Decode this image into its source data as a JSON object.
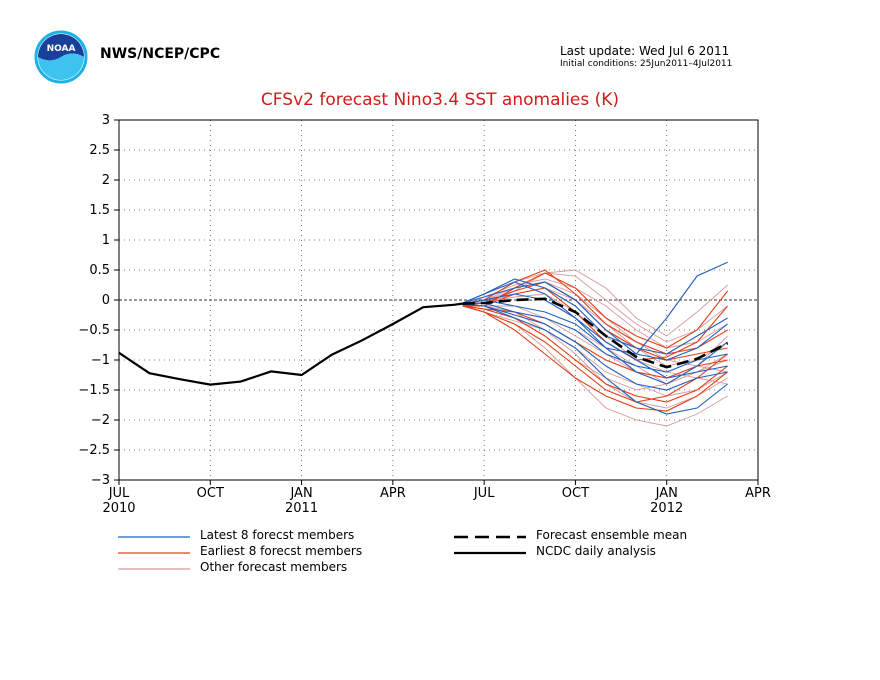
{
  "header": {
    "org": "NWS/NCEP/CPC",
    "last_update": "Last update: Wed Jul  6 2011",
    "initial_conditions": "Initial conditions: 25Jun2011–4Jul2011"
  },
  "logo": {
    "text": "NOAA"
  },
  "colors": {
    "title": "#d11a1a",
    "latest": "#1f5fbf",
    "earliest": "#e0401a",
    "other": "#d89a9a",
    "analysis": "#000000",
    "mean": "#000000"
  },
  "chart_data": {
    "type": "line",
    "title": "CFSv2 forecast Nino3.4 SST anomalies (K)",
    "xlabel": "",
    "ylabel": "",
    "x_domain_months": [
      0,
      21
    ],
    "ylim": [
      -3,
      3
    ],
    "yticks": [
      "3",
      "2.5",
      "2",
      "1.5",
      "1",
      "0.5",
      "0",
      "−0.5",
      "−1",
      "−1.5",
      "−2",
      "−2.5",
      "−3"
    ],
    "xticks": [
      {
        "label": "JUL",
        "sub": "2010"
      },
      {
        "label": "OCT",
        "sub": ""
      },
      {
        "label": "JAN",
        "sub": "2011"
      },
      {
        "label": "APR",
        "sub": ""
      },
      {
        "label": "JUL",
        "sub": ""
      },
      {
        "label": "OCT",
        "sub": ""
      },
      {
        "label": "JAN",
        "sub": "2012"
      },
      {
        "label": "APR",
        "sub": ""
      }
    ],
    "grid": true,
    "legend": [
      {
        "label": "Latest 8 forecst members",
        "style": "latest"
      },
      {
        "label": "Earliest 8 forecst members",
        "style": "earliest"
      },
      {
        "label": "Other forecast members",
        "style": "other"
      },
      {
        "label": "Forecast ensemble mean",
        "style": "mean"
      },
      {
        "label": "NCDC daily analysis",
        "style": "analysis"
      }
    ],
    "analysis": {
      "x": [
        0,
        1,
        2,
        3,
        4,
        5,
        6,
        7,
        8,
        9,
        10,
        11,
        11.3
      ],
      "y": [
        -0.88,
        -1.22,
        -1.32,
        -1.41,
        -1.36,
        -1.19,
        -1.25,
        -0.91,
        -0.67,
        -0.4,
        -0.12,
        -0.08,
        -0.06
      ]
    },
    "mean": {
      "x": [
        11.3,
        12,
        13,
        14,
        15,
        16,
        17,
        18,
        19,
        20
      ],
      "y": [
        -0.06,
        -0.05,
        0.0,
        0.02,
        -0.2,
        -0.6,
        -0.95,
        -1.12,
        -0.98,
        -0.72
      ]
    },
    "latest": [
      {
        "x": [
          11.3,
          12,
          13,
          14,
          15,
          16,
          17,
          18,
          19,
          20
        ],
        "y": [
          -0.05,
          0.1,
          0.3,
          0.1,
          -0.3,
          -0.8,
          -0.9,
          -0.3,
          0.4,
          0.63
        ]
      },
      {
        "x": [
          11.3,
          12,
          13,
          14,
          15,
          16,
          17,
          18,
          19,
          20
        ],
        "y": [
          -0.06,
          0.0,
          -0.1,
          -0.2,
          -0.4,
          -0.8,
          -1.2,
          -1.4,
          -1.1,
          -0.7
        ]
      },
      {
        "x": [
          11.3,
          12,
          13,
          14,
          15,
          16,
          17,
          18,
          19,
          20
        ],
        "y": [
          -0.07,
          -0.1,
          -0.3,
          -0.5,
          -0.8,
          -1.3,
          -1.7,
          -1.9,
          -1.8,
          -1.4
        ]
      },
      {
        "x": [
          11.3,
          12,
          13,
          14,
          15,
          16,
          17,
          18,
          19,
          20
        ],
        "y": [
          -0.05,
          0.05,
          0.2,
          0.3,
          0.0,
          -0.5,
          -0.9,
          -1.0,
          -0.8,
          -0.4
        ]
      },
      {
        "x": [
          11.3,
          12,
          13,
          14,
          15,
          16,
          17,
          18,
          19,
          20
        ],
        "y": [
          -0.06,
          -0.05,
          -0.2,
          -0.3,
          -0.5,
          -0.9,
          -1.1,
          -1.2,
          -1.0,
          -0.9
        ]
      },
      {
        "x": [
          11.3,
          12,
          13,
          14,
          15,
          16,
          17,
          18,
          19,
          20
        ],
        "y": [
          -0.06,
          0.0,
          0.1,
          0.0,
          -0.3,
          -0.7,
          -1.0,
          -1.3,
          -1.2,
          -1.1
        ]
      },
      {
        "x": [
          11.3,
          12,
          13,
          14,
          15,
          16,
          17,
          18,
          19,
          20
        ],
        "y": [
          -0.05,
          0.1,
          0.35,
          0.2,
          -0.1,
          -0.6,
          -0.8,
          -0.9,
          -0.6,
          -0.3
        ]
      },
      {
        "x": [
          11.3,
          12,
          13,
          14,
          15,
          16,
          17,
          18,
          19,
          20
        ],
        "y": [
          -0.07,
          -0.1,
          -0.25,
          -0.4,
          -0.7,
          -1.1,
          -1.4,
          -1.5,
          -1.3,
          -1.2
        ]
      }
    ],
    "earliest": [
      {
        "x": [
          11.3,
          12,
          13,
          14,
          15,
          16,
          17,
          18,
          19,
          20
        ],
        "y": [
          -0.1,
          -0.1,
          0.2,
          0.45,
          0.2,
          -0.3,
          -0.6,
          -0.8,
          -0.5,
          0.15
        ]
      },
      {
        "x": [
          11.3,
          12,
          13,
          14,
          15,
          16,
          17,
          18,
          19,
          20
        ],
        "y": [
          -0.1,
          -0.2,
          -0.5,
          -0.9,
          -1.3,
          -1.6,
          -1.8,
          -1.85,
          -1.6,
          -1.2
        ]
      },
      {
        "x": [
          11.3,
          12,
          13,
          14,
          15,
          16,
          17,
          18,
          19,
          20
        ],
        "y": [
          -0.1,
          -0.15,
          -0.3,
          -0.6,
          -1.0,
          -1.4,
          -1.6,
          -1.7,
          -1.5,
          -1.1
        ]
      },
      {
        "x": [
          11.3,
          12,
          13,
          14,
          15,
          16,
          17,
          18,
          19,
          20
        ],
        "y": [
          -0.08,
          0.0,
          0.3,
          0.5,
          0.1,
          -0.4,
          -0.7,
          -0.9,
          -0.8,
          -0.5
        ]
      },
      {
        "x": [
          11.3,
          12,
          13,
          14,
          15,
          16,
          17,
          18,
          19,
          20
        ],
        "y": [
          -0.1,
          -0.2,
          -0.4,
          -0.7,
          -1.1,
          -1.5,
          -1.7,
          -1.6,
          -1.3,
          -0.9
        ]
      },
      {
        "x": [
          11.3,
          12,
          13,
          14,
          15,
          16,
          17,
          18,
          19,
          20
        ],
        "y": [
          -0.09,
          -0.05,
          0.15,
          0.3,
          0.0,
          -0.5,
          -0.8,
          -1.0,
          -0.9,
          -0.8
        ]
      },
      {
        "x": [
          11.3,
          12,
          13,
          14,
          15,
          16,
          17,
          18,
          19,
          20
        ],
        "y": [
          -0.1,
          -0.15,
          -0.2,
          -0.4,
          -0.7,
          -1.0,
          -1.2,
          -1.3,
          -1.1,
          -1.0
        ]
      },
      {
        "x": [
          11.3,
          12,
          13,
          14,
          15,
          16,
          17,
          18,
          19,
          20
        ],
        "y": [
          -0.1,
          -0.1,
          0.1,
          0.2,
          -0.2,
          -0.7,
          -1.0,
          -0.95,
          -0.7,
          -0.1
        ]
      }
    ],
    "other": [
      {
        "x": [
          11.3,
          12,
          13,
          14,
          15,
          16,
          17,
          18,
          19,
          20
        ],
        "y": [
          -0.1,
          0.0,
          0.3,
          0.45,
          0.5,
          0.2,
          -0.3,
          -0.6,
          -0.2,
          0.25
        ]
      },
      {
        "x": [
          11.3,
          12,
          13,
          14,
          15,
          16,
          17,
          18,
          19,
          20
        ],
        "y": [
          -0.1,
          -0.2,
          -0.4,
          -0.8,
          -1.3,
          -1.8,
          -2.0,
          -2.1,
          -1.9,
          -1.6
        ]
      },
      {
        "x": [
          11.3,
          12,
          13,
          14,
          15,
          16,
          17,
          18,
          19,
          20
        ],
        "y": [
          -0.08,
          -0.05,
          0.1,
          0.2,
          0.0,
          -0.4,
          -0.8,
          -1.1,
          -1.0,
          -0.7
        ]
      },
      {
        "x": [
          11.3,
          12,
          13,
          14,
          15,
          16,
          17,
          18,
          19,
          20
        ],
        "y": [
          -0.09,
          -0.1,
          -0.2,
          -0.5,
          -0.9,
          -1.4,
          -1.7,
          -1.8,
          -1.6,
          -1.3
        ]
      },
      {
        "x": [
          11.3,
          12,
          13,
          14,
          15,
          16,
          17,
          18,
          19,
          20
        ],
        "y": [
          -0.1,
          0.05,
          0.25,
          0.35,
          0.2,
          -0.1,
          -0.5,
          -0.8,
          -0.7,
          -0.4
        ]
      },
      {
        "x": [
          11.3,
          12,
          13,
          14,
          15,
          16,
          17,
          18,
          19,
          20
        ],
        "y": [
          -0.1,
          -0.15,
          -0.3,
          -0.6,
          -1.0,
          -1.3,
          -1.5,
          -1.4,
          -1.2,
          -1.0
        ]
      },
      {
        "x": [
          11.3,
          12,
          13,
          14,
          15,
          16,
          17,
          18,
          19,
          20
        ],
        "y": [
          -0.08,
          0.0,
          0.2,
          0.3,
          0.1,
          -0.3,
          -0.7,
          -1.0,
          -1.1,
          -1.2
        ]
      },
      {
        "x": [
          11.3,
          12,
          13,
          14,
          15,
          16,
          17,
          18,
          19,
          20
        ],
        "y": [
          -0.1,
          -0.1,
          -0.1,
          -0.3,
          -0.6,
          -0.9,
          -1.2,
          -1.3,
          -1.1,
          -0.6
        ]
      },
      {
        "x": [
          11.3,
          12,
          13,
          14,
          15,
          16,
          17,
          18,
          19,
          20
        ],
        "y": [
          -0.09,
          -0.05,
          0.05,
          0.1,
          -0.2,
          -0.6,
          -1.0,
          -1.2,
          -1.3,
          -1.4
        ]
      },
      {
        "x": [
          11.3,
          12,
          13,
          14,
          15,
          16,
          17,
          18,
          19,
          20
        ],
        "y": [
          -0.1,
          -0.2,
          -0.35,
          -0.5,
          -0.8,
          -1.2,
          -1.4,
          -1.6,
          -1.5,
          -1.2
        ]
      },
      {
        "x": [
          11.3,
          12,
          13,
          14,
          15,
          16,
          17,
          18,
          19,
          20
        ],
        "y": [
          -0.08,
          0.0,
          0.15,
          0.45,
          0.4,
          0.0,
          -0.4,
          -0.7,
          -0.5,
          -0.1
        ]
      },
      {
        "x": [
          11.3,
          12,
          13,
          14,
          15,
          16,
          17,
          18,
          19,
          20
        ],
        "y": [
          -0.1,
          -0.1,
          -0.2,
          -0.3,
          -0.5,
          -0.8,
          -1.1,
          -1.4,
          -1.2,
          -0.9
        ]
      }
    ]
  },
  "legend_labels": {
    "latest": "Latest 8 forecst members",
    "earliest": "Earliest 8 forecst members",
    "other": "Other forecast members",
    "mean": "Forecast ensemble mean",
    "analysis": "NCDC daily analysis"
  }
}
